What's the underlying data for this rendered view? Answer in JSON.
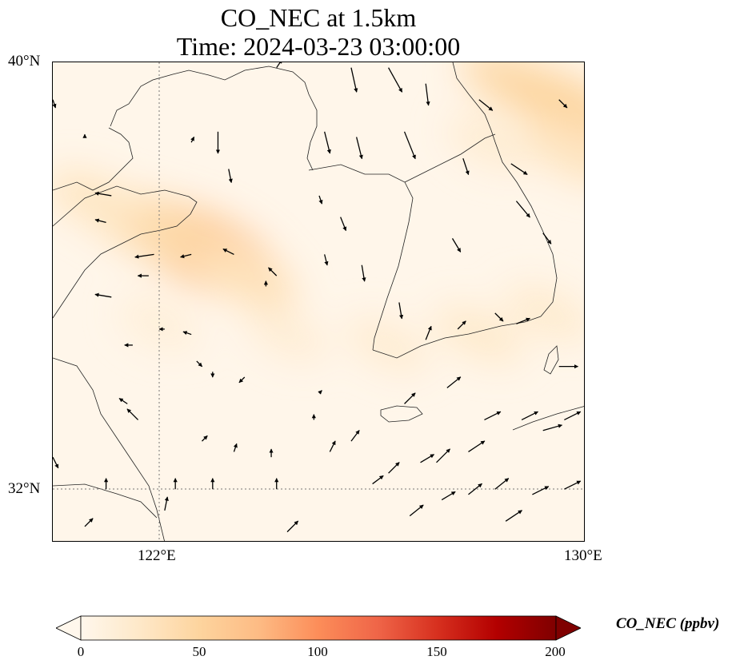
{
  "title": {
    "line1": "CO_NEC at 1.5km",
    "line2": "Time: 2024-03-23 03:00:00"
  },
  "axes": {
    "lat_labels": [
      "40°N",
      "32°N"
    ],
    "lon_labels": [
      "122°E",
      "130°E"
    ]
  },
  "colorbar": {
    "label": "CO_NEC (ppbv)",
    "ticks": [
      "0",
      "50",
      "100",
      "150",
      "200"
    ],
    "range": [
      0,
      200
    ],
    "extend": "both",
    "colormap": "OrRd"
  },
  "map": {
    "lon_range": [
      120.0,
      130.0
    ],
    "lat_range": [
      31.0,
      40.0
    ],
    "gridlines": "dotted",
    "plumes": [
      {
        "lon": 122.8,
        "lat": 36.5,
        "value": 75
      },
      {
        "lon": 122.4,
        "lat": 36.7,
        "value": 58
      },
      {
        "lon": 121.6,
        "lat": 37.0,
        "value": 42
      },
      {
        "lon": 123.6,
        "lat": 36.0,
        "value": 34
      },
      {
        "lon": 120.8,
        "lat": 37.4,
        "value": 28
      },
      {
        "lon": 128.7,
        "lat": 39.6,
        "value": 40
      },
      {
        "lon": 129.6,
        "lat": 39.2,
        "value": 48
      },
      {
        "lon": 129.8,
        "lat": 38.3,
        "value": 30
      },
      {
        "lon": 128.2,
        "lat": 38.5,
        "value": 18
      },
      {
        "lon": 128.0,
        "lat": 34.9,
        "value": 22
      },
      {
        "lon": 126.3,
        "lat": 34.7,
        "value": 18
      },
      {
        "lon": 124.4,
        "lat": 34.9,
        "value": 16
      },
      {
        "lon": 122.0,
        "lat": 35.1,
        "value": 14
      },
      {
        "lon": 129.3,
        "lat": 35.3,
        "value": 20
      }
    ],
    "wind_vectors": [
      {
        "lon": 120.0,
        "lat": 39.3,
        "u": 0.1,
        "v": -0.3
      },
      {
        "lon": 120.6,
        "lat": 38.6,
        "u": 0.0,
        "v": 0.1
      },
      {
        "lon": 122.6,
        "lat": 38.5,
        "u": 0.1,
        "v": 0.2
      },
      {
        "lon": 123.1,
        "lat": 38.7,
        "u": 0.0,
        "v": -0.8
      },
      {
        "lon": 123.3,
        "lat": 38.0,
        "u": 0.1,
        "v": -0.5
      },
      {
        "lon": 124.2,
        "lat": 39.9,
        "u": 0.2,
        "v": 0.3
      },
      {
        "lon": 125.6,
        "lat": 39.9,
        "u": 0.2,
        "v": -0.9
      },
      {
        "lon": 126.3,
        "lat": 39.9,
        "u": 0.5,
        "v": -0.9
      },
      {
        "lon": 127.0,
        "lat": 39.6,
        "u": 0.1,
        "v": -0.8
      },
      {
        "lon": 128.0,
        "lat": 39.3,
        "u": 0.5,
        "v": -0.4
      },
      {
        "lon": 129.5,
        "lat": 39.3,
        "u": 0.3,
        "v": -0.3
      },
      {
        "lon": 125.1,
        "lat": 38.7,
        "u": 0.2,
        "v": -0.8
      },
      {
        "lon": 125.7,
        "lat": 38.6,
        "u": 0.2,
        "v": -0.8
      },
      {
        "lon": 126.6,
        "lat": 38.7,
        "u": 0.4,
        "v": -1.0
      },
      {
        "lon": 127.7,
        "lat": 38.2,
        "u": 0.2,
        "v": -0.6
      },
      {
        "lon": 128.6,
        "lat": 38.1,
        "u": 0.6,
        "v": -0.4
      },
      {
        "lon": 130.0,
        "lat": 37.9,
        "u": 0.1,
        "v": -0.2
      },
      {
        "lon": 125.0,
        "lat": 37.5,
        "u": 0.1,
        "v": -0.3
      },
      {
        "lon": 125.4,
        "lat": 37.1,
        "u": 0.2,
        "v": -0.5
      },
      {
        "lon": 128.7,
        "lat": 37.4,
        "u": 0.5,
        "v": -0.6
      },
      {
        "lon": 129.2,
        "lat": 36.8,
        "u": 0.3,
        "v": -0.4
      },
      {
        "lon": 127.5,
        "lat": 36.7,
        "u": 0.3,
        "v": -0.5
      },
      {
        "lon": 125.8,
        "lat": 36.2,
        "u": 0.1,
        "v": -0.6
      },
      {
        "lon": 125.1,
        "lat": 36.4,
        "u": 0.1,
        "v": -0.4
      },
      {
        "lon": 126.5,
        "lat": 35.5,
        "u": 0.1,
        "v": -0.6
      },
      {
        "lon": 124.0,
        "lat": 35.8,
        "u": 0.0,
        "v": 0.2
      },
      {
        "lon": 127.0,
        "lat": 34.8,
        "u": 0.2,
        "v": 0.5
      },
      {
        "lon": 127.6,
        "lat": 35.0,
        "u": 0.3,
        "v": 0.3
      },
      {
        "lon": 128.3,
        "lat": 35.3,
        "u": 0.3,
        "v": -0.3
      },
      {
        "lon": 128.7,
        "lat": 35.1,
        "u": 0.5,
        "v": 0.2
      },
      {
        "lon": 129.5,
        "lat": 34.3,
        "u": 0.7,
        "v": 0.0
      },
      {
        "lon": 130.0,
        "lat": 34.2,
        "u": 0.5,
        "v": 0.0
      },
      {
        "lon": 121.1,
        "lat": 37.5,
        "u": -0.6,
        "v": 0.1
      },
      {
        "lon": 121.0,
        "lat": 37.0,
        "u": -0.4,
        "v": 0.1
      },
      {
        "lon": 121.9,
        "lat": 36.4,
        "u": -0.7,
        "v": -0.1
      },
      {
        "lon": 122.6,
        "lat": 36.4,
        "u": -0.4,
        "v": -0.1
      },
      {
        "lon": 123.4,
        "lat": 36.4,
        "u": -0.4,
        "v": 0.2
      },
      {
        "lon": 124.2,
        "lat": 36.0,
        "u": -0.3,
        "v": 0.3
      },
      {
        "lon": 121.8,
        "lat": 36.0,
        "u": -0.4,
        "v": 0.0
      },
      {
        "lon": 121.1,
        "lat": 35.6,
        "u": -0.6,
        "v": 0.1
      },
      {
        "lon": 122.1,
        "lat": 35.0,
        "u": -0.2,
        "v": 0.0
      },
      {
        "lon": 122.6,
        "lat": 34.9,
        "u": -0.3,
        "v": 0.1
      },
      {
        "lon": 121.5,
        "lat": 34.7,
        "u": -0.3,
        "v": 0.0
      },
      {
        "lon": 122.7,
        "lat": 34.4,
        "u": 0.2,
        "v": -0.2
      },
      {
        "lon": 123.6,
        "lat": 34.1,
        "u": -0.2,
        "v": -0.2
      },
      {
        "lon": 123.0,
        "lat": 34.2,
        "u": 0.0,
        "v": -0.2
      },
      {
        "lon": 121.4,
        "lat": 33.6,
        "u": -0.3,
        "v": 0.2
      },
      {
        "lon": 121.6,
        "lat": 33.3,
        "u": -0.4,
        "v": 0.4
      },
      {
        "lon": 122.8,
        "lat": 32.9,
        "u": 0.2,
        "v": 0.2
      },
      {
        "lon": 123.4,
        "lat": 32.7,
        "u": 0.1,
        "v": 0.3
      },
      {
        "lon": 124.1,
        "lat": 32.6,
        "u": 0.0,
        "v": 0.3
      },
      {
        "lon": 124.9,
        "lat": 33.3,
        "u": 0.0,
        "v": 0.2
      },
      {
        "lon": 125.0,
        "lat": 33.8,
        "u": 0.1,
        "v": 0.1
      },
      {
        "lon": 124.2,
        "lat": 32.0,
        "u": 0.0,
        "v": 0.4
      },
      {
        "lon": 123.0,
        "lat": 32.0,
        "u": 0.0,
        "v": 0.4
      },
      {
        "lon": 122.3,
        "lat": 32.0,
        "u": 0.0,
        "v": 0.4
      },
      {
        "lon": 121.0,
        "lat": 32.0,
        "u": 0.0,
        "v": 0.4
      },
      {
        "lon": 120.0,
        "lat": 32.6,
        "u": 0.2,
        "v": -0.4
      },
      {
        "lon": 120.6,
        "lat": 31.3,
        "u": 0.3,
        "v": 0.3
      },
      {
        "lon": 122.1,
        "lat": 31.6,
        "u": 0.1,
        "v": 0.5
      },
      {
        "lon": 126.0,
        "lat": 32.1,
        "u": 0.4,
        "v": 0.3
      },
      {
        "lon": 126.3,
        "lat": 32.3,
        "u": 0.4,
        "v": 0.4
      },
      {
        "lon": 126.9,
        "lat": 32.5,
        "u": 0.5,
        "v": 0.3
      },
      {
        "lon": 127.2,
        "lat": 32.5,
        "u": 0.5,
        "v": 0.5
      },
      {
        "lon": 127.8,
        "lat": 32.7,
        "u": 0.6,
        "v": 0.4
      },
      {
        "lon": 128.1,
        "lat": 33.3,
        "u": 0.6,
        "v": 0.3
      },
      {
        "lon": 128.8,
        "lat": 33.3,
        "u": 0.6,
        "v": 0.3
      },
      {
        "lon": 129.2,
        "lat": 33.1,
        "u": 0.7,
        "v": 0.2
      },
      {
        "lon": 129.6,
        "lat": 33.3,
        "u": 0.6,
        "v": 0.3
      },
      {
        "lon": 127.3,
        "lat": 31.8,
        "u": 0.5,
        "v": 0.3
      },
      {
        "lon": 127.8,
        "lat": 31.9,
        "u": 0.5,
        "v": 0.4
      },
      {
        "lon": 128.3,
        "lat": 32.0,
        "u": 0.5,
        "v": 0.4
      },
      {
        "lon": 129.0,
        "lat": 31.9,
        "u": 0.6,
        "v": 0.3
      },
      {
        "lon": 129.6,
        "lat": 32.0,
        "u": 0.6,
        "v": 0.3
      },
      {
        "lon": 126.7,
        "lat": 31.5,
        "u": 0.5,
        "v": 0.4
      },
      {
        "lon": 128.5,
        "lat": 31.4,
        "u": 0.6,
        "v": 0.4
      },
      {
        "lon": 124.4,
        "lat": 31.2,
        "u": 0.4,
        "v": 0.4
      },
      {
        "lon": 125.2,
        "lat": 32.7,
        "u": 0.2,
        "v": 0.4
      },
      {
        "lon": 125.6,
        "lat": 32.9,
        "u": 0.3,
        "v": 0.4
      },
      {
        "lon": 126.6,
        "lat": 33.6,
        "u": 0.4,
        "v": 0.4
      },
      {
        "lon": 127.4,
        "lat": 33.9,
        "u": 0.5,
        "v": 0.4
      }
    ]
  }
}
